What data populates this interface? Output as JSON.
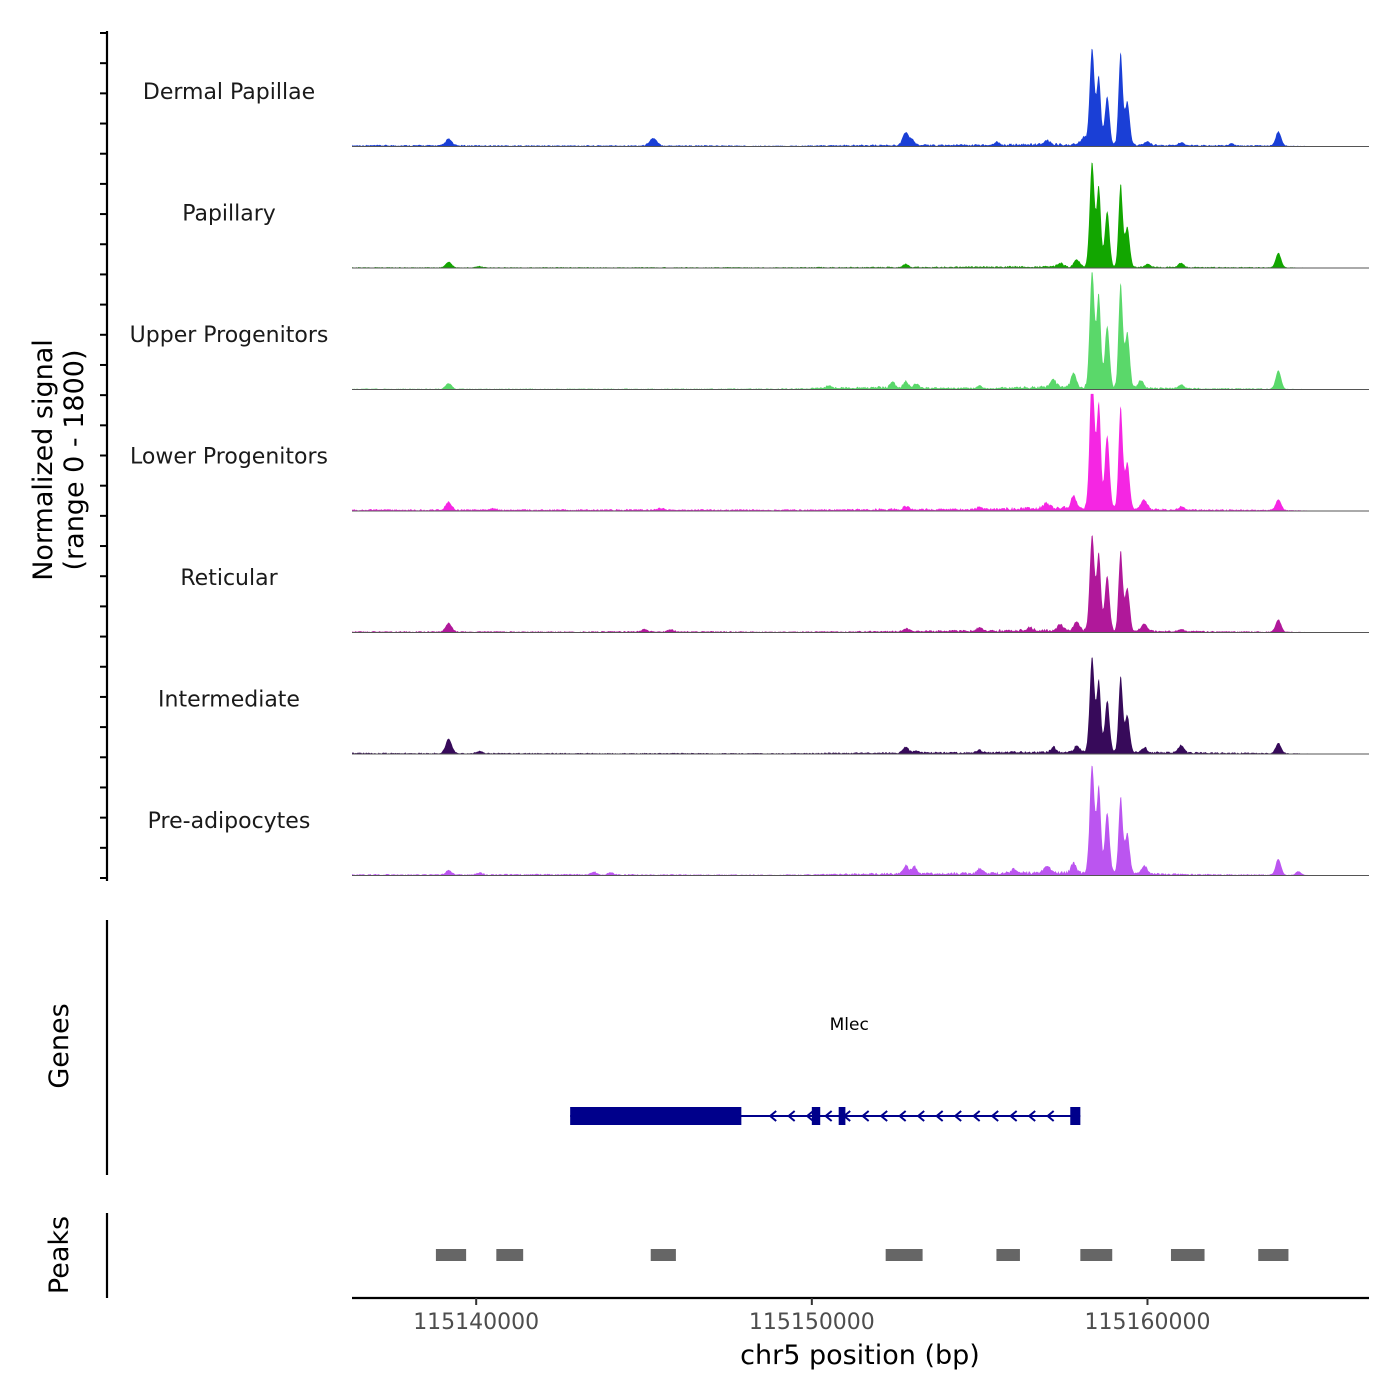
{
  "chart_data": {
    "type": "area",
    "title": "",
    "chromosome": "chr5",
    "xlabel": "chr5 position (bp)",
    "xlim": [
      115136300,
      115166600
    ],
    "xticks": [
      115140000,
      115150000,
      115160000
    ],
    "xtick_labels": [
      "115140000",
      "115150000",
      "115160000"
    ],
    "coverage_panel": {
      "ylabel_line1": "Normalized signal",
      "ylabel_line2": "(range 0 - 1800)",
      "ylim": [
        0,
        1800
      ]
    },
    "series": [
      {
        "name": "Dermal Papillae",
        "color": "#1a3fd6",
        "background": [
          [
            115138500,
            18
          ],
          [
            115142000,
            14
          ],
          [
            115146000,
            16
          ],
          [
            115149000,
            10
          ],
          [
            115152000,
            22
          ],
          [
            115155000,
            26
          ],
          [
            115157000,
            38
          ],
          [
            115161000,
            20
          ],
          [
            115164000,
            14
          ]
        ],
        "peaks": [
          [
            115139180,
            110,
            90
          ],
          [
            115145270,
            120,
            110
          ],
          [
            115152800,
            210,
            90
          ],
          [
            115153000,
            80,
            70
          ],
          [
            115155500,
            60,
            60
          ],
          [
            115157000,
            70,
            80
          ],
          [
            115158100,
            120,
            90
          ],
          [
            115158350,
            1550,
            70
          ],
          [
            115158550,
            1100,
            60
          ],
          [
            115158800,
            780,
            70
          ],
          [
            115159200,
            1500,
            60
          ],
          [
            115159400,
            700,
            70
          ],
          [
            115160000,
            60,
            80
          ],
          [
            115161000,
            45,
            80
          ],
          [
            115162500,
            35,
            70
          ],
          [
            115163900,
            230,
            80
          ]
        ]
      },
      {
        "name": "Papillary",
        "color": "#12a600",
        "background": [
          [
            115138500,
            10
          ],
          [
            115142000,
            10
          ],
          [
            115146000,
            10
          ],
          [
            115149000,
            10
          ],
          [
            115152000,
            15
          ],
          [
            115155000,
            20
          ],
          [
            115157000,
            25
          ],
          [
            115161000,
            15
          ],
          [
            115164000,
            10
          ]
        ],
        "peaks": [
          [
            115139180,
            90,
            90
          ],
          [
            115140100,
            20,
            100
          ],
          [
            115152800,
            50,
            80
          ],
          [
            115157400,
            60,
            90
          ],
          [
            115157900,
            120,
            80
          ],
          [
            115158350,
            1700,
            70
          ],
          [
            115158550,
            1300,
            60
          ],
          [
            115158800,
            900,
            70
          ],
          [
            115159200,
            1350,
            60
          ],
          [
            115159400,
            650,
            70
          ],
          [
            115160000,
            50,
            80
          ],
          [
            115161000,
            70,
            80
          ],
          [
            115163900,
            240,
            80
          ]
        ]
      },
      {
        "name": "Upper Progenitors",
        "color": "#5ad86a",
        "background": [
          [
            115138500,
            10
          ],
          [
            115142000,
            10
          ],
          [
            115146000,
            10
          ],
          [
            115149000,
            12
          ],
          [
            115152000,
            35
          ],
          [
            115155000,
            20
          ],
          [
            115157000,
            45
          ],
          [
            115161000,
            20
          ],
          [
            115164000,
            10
          ]
        ],
        "peaks": [
          [
            115139180,
            90,
            90
          ],
          [
            115150500,
            40,
            90
          ],
          [
            115152400,
            100,
            70
          ],
          [
            115152800,
            120,
            70
          ],
          [
            115153100,
            70,
            70
          ],
          [
            115155000,
            45,
            80
          ],
          [
            115157200,
            120,
            80
          ],
          [
            115157800,
            230,
            80
          ],
          [
            115158350,
            1900,
            70
          ],
          [
            115158550,
            1500,
            60
          ],
          [
            115158800,
            1000,
            70
          ],
          [
            115159200,
            1700,
            60
          ],
          [
            115159400,
            900,
            70
          ],
          [
            115159800,
            120,
            80
          ],
          [
            115161000,
            60,
            80
          ],
          [
            115163900,
            300,
            80
          ]
        ]
      },
      {
        "name": "Lower Progenitors",
        "color": "#f526e3",
        "background": [
          [
            115138500,
            20
          ],
          [
            115142000,
            20
          ],
          [
            115146000,
            22
          ],
          [
            115149000,
            18
          ],
          [
            115152000,
            28
          ],
          [
            115155000,
            30
          ],
          [
            115157000,
            55
          ],
          [
            115161000,
            22
          ],
          [
            115164000,
            15
          ]
        ],
        "peaks": [
          [
            115139180,
            130,
            90
          ],
          [
            115140500,
            30,
            100
          ],
          [
            115145500,
            25,
            100
          ],
          [
            115152800,
            50,
            80
          ],
          [
            115155000,
            40,
            80
          ],
          [
            115157000,
            90,
            80
          ],
          [
            115157800,
            200,
            80
          ],
          [
            115158350,
            2250,
            70
          ],
          [
            115158550,
            1700,
            60
          ],
          [
            115158800,
            1200,
            70
          ],
          [
            115159200,
            1650,
            60
          ],
          [
            115159400,
            750,
            70
          ],
          [
            115159900,
            160,
            90
          ],
          [
            115161000,
            50,
            80
          ],
          [
            115163900,
            180,
            80
          ]
        ]
      },
      {
        "name": "Reticular",
        "color": "#b0189a",
        "background": [
          [
            115138500,
            15
          ],
          [
            115142000,
            12
          ],
          [
            115146000,
            18
          ],
          [
            115149000,
            10
          ],
          [
            115152000,
            20
          ],
          [
            115155000,
            30
          ],
          [
            115157000,
            40
          ],
          [
            115161000,
            20
          ],
          [
            115164000,
            12
          ]
        ],
        "peaks": [
          [
            115139180,
            140,
            90
          ],
          [
            115145000,
            40,
            80
          ],
          [
            115145800,
            35,
            80
          ],
          [
            115152800,
            50,
            80
          ],
          [
            115155000,
            60,
            80
          ],
          [
            115156500,
            55,
            80
          ],
          [
            115157400,
            110,
            80
          ],
          [
            115157900,
            150,
            80
          ],
          [
            115158350,
            1550,
            70
          ],
          [
            115158550,
            1250,
            60
          ],
          [
            115158800,
            900,
            70
          ],
          [
            115159200,
            1300,
            60
          ],
          [
            115159400,
            700,
            70
          ],
          [
            115159900,
            120,
            90
          ],
          [
            115161000,
            40,
            80
          ],
          [
            115163900,
            200,
            80
          ]
        ]
      },
      {
        "name": "Intermediate",
        "color": "#370a5a",
        "background": [
          [
            115138500,
            15
          ],
          [
            115142000,
            12
          ],
          [
            115146000,
            12
          ],
          [
            115149000,
            10
          ],
          [
            115152000,
            20
          ],
          [
            115155000,
            25
          ],
          [
            115157000,
            35
          ],
          [
            115161000,
            25
          ],
          [
            115164000,
            12
          ]
        ],
        "peaks": [
          [
            115139180,
            240,
            90
          ],
          [
            115140100,
            40,
            80
          ],
          [
            115152800,
            90,
            90
          ],
          [
            115153100,
            40,
            70
          ],
          [
            115155000,
            40,
            80
          ],
          [
            115157200,
            80,
            80
          ],
          [
            115157900,
            120,
            80
          ],
          [
            115158350,
            1550,
            70
          ],
          [
            115158550,
            1150,
            60
          ],
          [
            115158800,
            850,
            70
          ],
          [
            115159200,
            1250,
            60
          ],
          [
            115159400,
            600,
            70
          ],
          [
            115159900,
            80,
            90
          ],
          [
            115161000,
            120,
            80
          ],
          [
            115163900,
            170,
            80
          ]
        ]
      },
      {
        "name": "Pre-adipocytes",
        "color": "#bb55f0",
        "background": [
          [
            115138500,
            15
          ],
          [
            115142000,
            18
          ],
          [
            115146000,
            14
          ],
          [
            115149000,
            10
          ],
          [
            115152000,
            30
          ],
          [
            115155000,
            35
          ],
          [
            115157000,
            55
          ],
          [
            115161000,
            20
          ],
          [
            115164000,
            12
          ]
        ],
        "peaks": [
          [
            115139180,
            70,
            90
          ],
          [
            115140100,
            30,
            90
          ],
          [
            115143500,
            50,
            80
          ],
          [
            115144000,
            40,
            80
          ],
          [
            115152800,
            140,
            80
          ],
          [
            115153050,
            130,
            70
          ],
          [
            115155000,
            80,
            80
          ],
          [
            115156000,
            60,
            80
          ],
          [
            115157000,
            110,
            80
          ],
          [
            115157800,
            160,
            80
          ],
          [
            115158350,
            1750,
            70
          ],
          [
            115158550,
            1400,
            60
          ],
          [
            115158800,
            1000,
            70
          ],
          [
            115159200,
            1250,
            60
          ],
          [
            115159400,
            650,
            70
          ],
          [
            115159900,
            130,
            90
          ],
          [
            115163900,
            260,
            80
          ],
          [
            115164500,
            60,
            80
          ]
        ]
      }
    ],
    "genes_panel": {
      "ylabel": "Genes",
      "genes": [
        {
          "name": "Mlec",
          "strand": "-",
          "start": 115142800,
          "end": 115158000,
          "exons": [
            [
              115142800,
              115147900
            ],
            [
              115150000,
              115150250
            ],
            [
              115150800,
              115151000
            ],
            [
              115157700,
              115158000
            ]
          ],
          "color": "#00008b"
        }
      ]
    },
    "peaks_panel": {
      "ylabel": "Peaks",
      "color": "#666666",
      "regions": [
        [
          115138800,
          115139700
        ],
        [
          115140600,
          115141400
        ],
        [
          115145200,
          115145950
        ],
        [
          115152200,
          115153300
        ],
        [
          115155500,
          115156200
        ],
        [
          115158000,
          115158950
        ],
        [
          115160700,
          115161700
        ],
        [
          115163300,
          115164200
        ]
      ]
    }
  }
}
